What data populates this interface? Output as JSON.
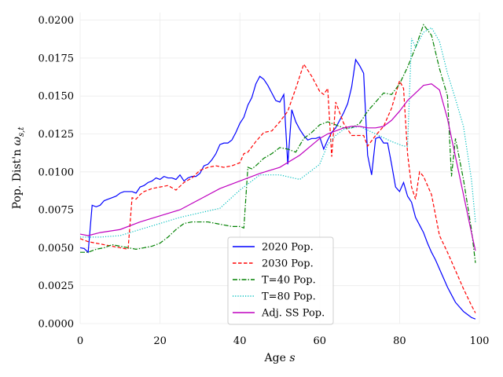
{
  "chart_data": {
    "type": "line",
    "title": "",
    "xlabel": "Age s",
    "xlabel_main": "Age ",
    "xlabel_var": "s",
    "ylabel": "Pop. Dist'n ω_{s,t}",
    "ylabel_main": "Pop. Dist'n ",
    "ylabel_sym": "ω",
    "ylabel_sub": "s,t",
    "xlim": [
      0,
      100
    ],
    "ylim": [
      0,
      0.0205
    ],
    "xticks": [
      0,
      20,
      40,
      60,
      80,
      100
    ],
    "xtick_labels": [
      "0",
      "20",
      "40",
      "60",
      "80",
      "100"
    ],
    "yticks": [
      0,
      0.0025,
      0.005,
      0.0075,
      0.01,
      0.0125,
      0.015,
      0.0175,
      0.02
    ],
    "ytick_labels": [
      "0.0000",
      "0.0025",
      "0.0050",
      "0.0075",
      "0.0100",
      "0.0125",
      "0.0150",
      "0.0175",
      "0.0200"
    ],
    "grid": true,
    "legend_position": "bottom-center",
    "series": [
      {
        "name": "2020 Pop.",
        "color": "#0000ff",
        "dash": "solid",
        "x": [
          0,
          1,
          2,
          3,
          4,
          5,
          6,
          7,
          8,
          9,
          10,
          11,
          12,
          13,
          14,
          15,
          16,
          17,
          18,
          19,
          20,
          21,
          22,
          23,
          24,
          25,
          26,
          27,
          28,
          29,
          30,
          31,
          32,
          33,
          34,
          35,
          36,
          37,
          38,
          39,
          40,
          41,
          42,
          43,
          44,
          45,
          46,
          47,
          48,
          49,
          50,
          51,
          52,
          53,
          54,
          55,
          56,
          57,
          58,
          59,
          60,
          61,
          62,
          63,
          64,
          65,
          66,
          67,
          68,
          69,
          70,
          71,
          72,
          73,
          74,
          75,
          76,
          77,
          78,
          79,
          80,
          81,
          82,
          83,
          84,
          85,
          86,
          87,
          88,
          89,
          90,
          91,
          92,
          93,
          94,
          95,
          96,
          97,
          98,
          99
        ],
        "y": [
          0.005,
          0.00495,
          0.0047,
          0.0078,
          0.0077,
          0.0078,
          0.0081,
          0.0082,
          0.0083,
          0.0084,
          0.0086,
          0.0087,
          0.0087,
          0.0087,
          0.0086,
          0.009,
          0.0091,
          0.0093,
          0.0094,
          0.0096,
          0.0095,
          0.0097,
          0.0096,
          0.0096,
          0.0095,
          0.0098,
          0.0094,
          0.0096,
          0.0097,
          0.0097,
          0.0099,
          0.0104,
          0.0105,
          0.0108,
          0.0112,
          0.0118,
          0.0119,
          0.0119,
          0.0121,
          0.0126,
          0.0132,
          0.0136,
          0.0144,
          0.0149,
          0.0158,
          0.0163,
          0.0161,
          0.0157,
          0.0152,
          0.0147,
          0.0146,
          0.0151,
          0.0105,
          0.0141,
          0.0133,
          0.0128,
          0.0124,
          0.0121,
          0.0122,
          0.0122,
          0.0123,
          0.0115,
          0.0121,
          0.0126,
          0.0129,
          0.0134,
          0.0139,
          0.0145,
          0.0156,
          0.0174,
          0.017,
          0.0165,
          0.0111,
          0.0098,
          0.0122,
          0.0123,
          0.0119,
          0.0119,
          0.0105,
          0.009,
          0.0087,
          0.0093,
          0.0084,
          0.008,
          0.007,
          0.0065,
          0.006,
          0.0053,
          0.0047,
          0.0042,
          0.0036,
          0.003,
          0.0024,
          0.0019,
          0.0014,
          0.0011,
          0.0008,
          0.0006,
          0.0004,
          0.0003
        ]
      },
      {
        "name": "2030 Pop.",
        "color": "#ff0000",
        "dash": "dashed",
        "x": [
          0,
          2,
          4,
          6,
          8,
          10,
          12,
          13,
          14,
          15,
          16,
          18,
          20,
          22,
          24,
          26,
          28,
          30,
          32,
          34,
          36,
          38,
          40,
          41,
          42,
          44,
          46,
          48,
          50,
          52,
          54,
          56,
          58,
          60,
          61,
          62,
          63,
          64,
          66,
          68,
          70,
          71,
          72,
          74,
          76,
          78,
          80,
          81,
          82,
          83,
          84,
          85,
          86,
          88,
          90,
          92,
          94,
          96,
          98,
          99
        ],
        "y": [
          0.0056,
          0.0054,
          0.0053,
          0.0052,
          0.0051,
          0.005,
          0.0049,
          0.0083,
          0.0082,
          0.0085,
          0.0087,
          0.0089,
          0.009,
          0.0091,
          0.0088,
          0.0093,
          0.0096,
          0.0101,
          0.0103,
          0.0104,
          0.0103,
          0.0104,
          0.0106,
          0.0112,
          0.0113,
          0.012,
          0.0126,
          0.0127,
          0.0133,
          0.014,
          0.0155,
          0.0171,
          0.0163,
          0.0153,
          0.0151,
          0.0155,
          0.011,
          0.0146,
          0.0132,
          0.0124,
          0.0124,
          0.0124,
          0.0117,
          0.0124,
          0.013,
          0.0142,
          0.016,
          0.0155,
          0.0112,
          0.009,
          0.0082,
          0.01,
          0.0097,
          0.0085,
          0.0058,
          0.0047,
          0.0035,
          0.0023,
          0.0012,
          0.0007
        ]
      },
      {
        "name": "T=40 Pop.",
        "color": "#008000",
        "dash": "dashdot",
        "x": [
          0,
          2,
          4,
          6,
          8,
          10,
          12,
          14,
          16,
          18,
          20,
          22,
          24,
          26,
          28,
          30,
          32,
          34,
          36,
          38,
          40,
          41,
          42,
          43,
          44,
          46,
          48,
          50,
          52,
          54,
          56,
          58,
          60,
          62,
          64,
          66,
          68,
          70,
          72,
          74,
          76,
          78,
          80,
          82,
          84,
          86,
          88,
          90,
          92,
          93,
          94,
          96,
          98,
          99
        ],
        "y": [
          0.0047,
          0.0047,
          0.0049,
          0.005,
          0.0052,
          0.0051,
          0.005,
          0.0049,
          0.005,
          0.0051,
          0.0053,
          0.0057,
          0.0062,
          0.0066,
          0.0067,
          0.0067,
          0.0067,
          0.0066,
          0.0065,
          0.0064,
          0.0064,
          0.0063,
          0.0103,
          0.0102,
          0.0104,
          0.0109,
          0.0112,
          0.0116,
          0.0115,
          0.0113,
          0.0122,
          0.0126,
          0.0131,
          0.0133,
          0.0131,
          0.0129,
          0.0129,
          0.0132,
          0.014,
          0.0146,
          0.0152,
          0.0151,
          0.0158,
          0.0169,
          0.0182,
          0.0197,
          0.019,
          0.0168,
          0.015,
          0.0097,
          0.0122,
          0.0095,
          0.0062,
          0.004
        ]
      },
      {
        "name": "T=80 Pop.",
        "color": "#00bfbf",
        "dash": "dotted",
        "x": [
          0,
          5,
          10,
          15,
          20,
          25,
          30,
          35,
          40,
          45,
          50,
          55,
          60,
          62,
          64,
          66,
          70,
          74,
          78,
          80,
          81,
          82,
          83,
          84,
          86,
          88,
          90,
          92,
          94,
          96,
          98,
          99
        ],
        "y": [
          0.0057,
          0.0057,
          0.0058,
          0.0062,
          0.0066,
          0.007,
          0.0073,
          0.0076,
          0.0088,
          0.0098,
          0.0098,
          0.0095,
          0.0105,
          0.0118,
          0.0124,
          0.0128,
          0.013,
          0.0125,
          0.012,
          0.0118,
          0.0117,
          0.0117,
          0.0188,
          0.0182,
          0.0192,
          0.0195,
          0.0186,
          0.0165,
          0.0148,
          0.013,
          0.0095,
          0.0067
        ]
      },
      {
        "name": "Adj. SS Pop.",
        "color": "#bf00bf",
        "dash": "solid",
        "x": [
          0,
          2,
          5,
          10,
          15,
          20,
          25,
          30,
          35,
          40,
          45,
          50,
          55,
          60,
          62,
          64,
          66,
          68,
          70,
          72,
          74,
          76,
          78,
          80,
          82,
          84,
          86,
          88,
          90,
          92,
          94,
          96,
          98,
          99
        ],
        "y": [
          0.0059,
          0.0058,
          0.006,
          0.0062,
          0.0067,
          0.0071,
          0.0075,
          0.0082,
          0.0089,
          0.0094,
          0.0099,
          0.0103,
          0.0111,
          0.0122,
          0.0125,
          0.0127,
          0.0129,
          0.013,
          0.013,
          0.0129,
          0.0129,
          0.013,
          0.0134,
          0.014,
          0.0147,
          0.0152,
          0.0157,
          0.0158,
          0.0154,
          0.0135,
          0.011,
          0.0085,
          0.006,
          0.0048
        ]
      }
    ]
  }
}
